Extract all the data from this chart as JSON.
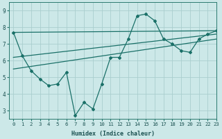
{
  "xlabel": "Humidex (Indice chaleur)",
  "background_color": "#cce8e8",
  "line_color": "#1a7068",
  "grid_color": "#aacece",
  "xlim": [
    -0.5,
    23
  ],
  "ylim": [
    2.5,
    9.5
  ],
  "yticks": [
    3,
    4,
    5,
    6,
    7,
    8,
    9
  ],
  "xticks": [
    0,
    1,
    2,
    3,
    4,
    5,
    6,
    7,
    8,
    9,
    10,
    11,
    12,
    13,
    14,
    15,
    16,
    17,
    18,
    19,
    20,
    21,
    22,
    23
  ],
  "main_line": {
    "x": [
      0,
      1,
      2,
      3,
      4,
      5,
      6,
      7,
      8,
      9,
      10,
      11,
      12,
      13,
      14,
      15,
      16,
      17,
      18,
      19,
      20,
      21,
      22,
      23
    ],
    "y": [
      7.7,
      6.3,
      5.4,
      4.9,
      4.5,
      4.6,
      5.3,
      2.7,
      3.5,
      3.1,
      4.6,
      6.2,
      6.2,
      7.3,
      8.7,
      8.8,
      8.4,
      7.3,
      7.0,
      6.6,
      6.5,
      7.3,
      7.6,
      7.8
    ]
  },
  "trend_lines": [
    {
      "x": [
        0,
        23
      ],
      "y": [
        7.7,
        7.8
      ]
    },
    {
      "x": [
        0,
        23
      ],
      "y": [
        6.2,
        7.6
      ]
    },
    {
      "x": [
        0,
        23
      ],
      "y": [
        5.5,
        7.3
      ]
    }
  ]
}
